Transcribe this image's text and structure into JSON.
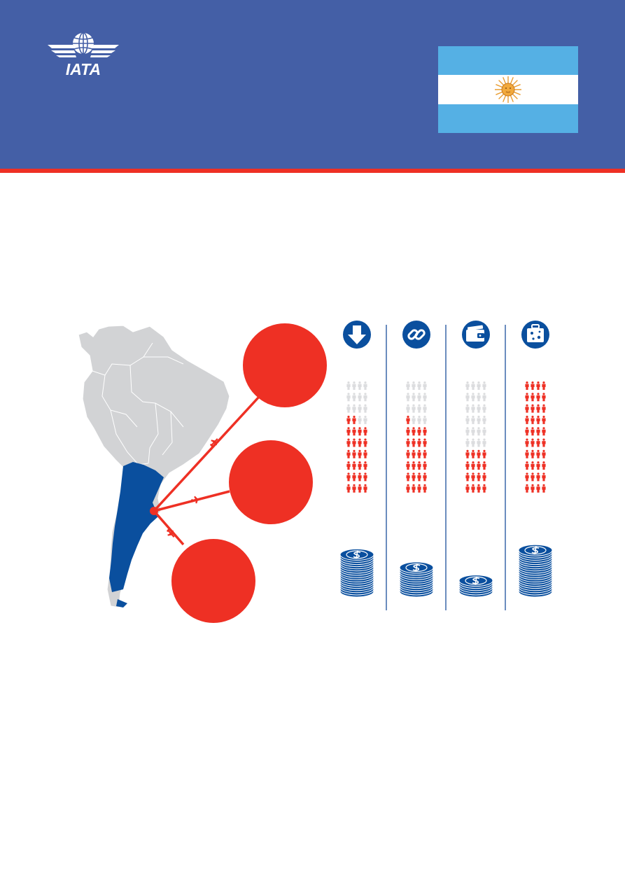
{
  "header": {
    "logo_text": "IATA",
    "flag_icon": "argentina-flag-icon"
  },
  "colors": {
    "header_bg": "#445fa6",
    "red": "#ee3024",
    "blue": "#0a4f9e",
    "grey": "#d2d3d5",
    "figure_grey": "#dcdddf",
    "divider": "#1b4f9c"
  },
  "infographic": {
    "map": {
      "highlighted_country": "Argentina",
      "callout_bubbles": 3
    },
    "columns": [
      {
        "icon": "arrow-down-icon",
        "people_highlighted": 26,
        "people_total": 40,
        "coin_stack": 9
      },
      {
        "icon": "link-icon",
        "people_highlighted": 25,
        "people_total": 40,
        "coin_stack": 6
      },
      {
        "icon": "wallet-icon",
        "people_highlighted": 16,
        "people_total": 40,
        "coin_stack": 3
      },
      {
        "icon": "luggage-icon",
        "people_highlighted": 40,
        "people_total": 40,
        "coin_stack": 10
      }
    ]
  }
}
